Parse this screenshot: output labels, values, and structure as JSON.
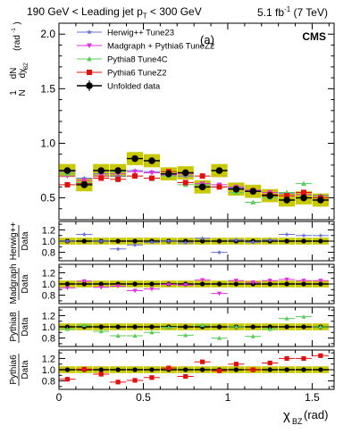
{
  "header": {
    "selection": "190 GeV < Leading jet p",
    "selection_sub": "T",
    "selection_tail": " < 300 GeV",
    "lumi": "5.1 fb",
    "lumi_sup": "-1",
    "lumi_tail": " (7 TeV)"
  },
  "labels": {
    "panel_tag": "(a)",
    "experiment": "CMS",
    "xlabel_main": "χ",
    "xlabel_sub": "BZ",
    "xlabel_unit": " (rad)"
  },
  "chart_data": {
    "type": "scatter",
    "xlim": [
      0,
      1.63
    ],
    "x": [
      0.0,
      0.1,
      0.2,
      0.3,
      0.4,
      0.5,
      0.6,
      0.7,
      0.8,
      0.9,
      1.0,
      1.1,
      1.2,
      1.3,
      1.4,
      1.5
    ],
    "x_ticks": [
      "0",
      "0.5",
      "1",
      "1.5"
    ],
    "main": {
      "ylabel": "1/N dN/dχ_BZ (rad^-1)",
      "ylim": [
        0.3,
        2.1
      ],
      "y_ticks": [
        "0.5",
        "1.0",
        "1.5",
        "2.0"
      ],
      "legend": [
        "Herwig++ Tune23",
        "Madgraph + Pythia6 TuneZ2",
        "Pythia8 Tune4C",
        "Pythia6 TuneZ2",
        "Unfolded data"
      ],
      "series": [
        {
          "name": "Herwig++ Tune23",
          "color": "#6a72d6",
          "marker": "star",
          "values": [
            0.74,
            0.68,
            0.72,
            0.7,
            0.75,
            0.74,
            0.72,
            0.7,
            0.62,
            0.6,
            0.59,
            0.56,
            0.52,
            0.54,
            0.55,
            0.52
          ]
        },
        {
          "name": "Madgraph + Pythia6 TuneZ2",
          "color": "#e030e0",
          "marker": "tri-down",
          "values": [
            0.7,
            0.66,
            0.7,
            0.72,
            0.74,
            0.73,
            0.71,
            0.72,
            0.63,
            0.62,
            0.6,
            0.57,
            0.55,
            0.52,
            0.53,
            0.5
          ]
        },
        {
          "name": "Pythia8 Tune4C",
          "color": "#5ccc5c",
          "marker": "tri-up",
          "values": [
            0.72,
            0.64,
            0.68,
            0.74,
            0.7,
            0.68,
            0.7,
            0.62,
            0.62,
            0.6,
            0.55,
            0.46,
            0.5,
            0.55,
            0.63,
            0.5
          ]
        },
        {
          "name": "Pythia6 TuneZ2",
          "color": "#e01010",
          "marker": "square",
          "values": [
            0.62,
            0.63,
            0.68,
            0.67,
            0.7,
            0.68,
            0.74,
            0.64,
            0.7,
            0.6,
            0.58,
            0.56,
            0.53,
            0.52,
            0.55,
            0.5
          ]
        },
        {
          "name": "Unfolded data",
          "color": "#000000",
          "marker": "circle",
          "values": [
            0.75,
            0.62,
            0.75,
            0.75,
            0.86,
            0.84,
            0.72,
            0.73,
            0.6,
            0.75,
            0.58,
            0.56,
            0.52,
            0.48,
            0.5,
            0.48
          ],
          "band": 0.06
        }
      ]
    },
    "ratios": [
      {
        "label_top": "Herwig++",
        "label_bottom": "Data",
        "color": "#6a72d6",
        "marker": "star",
        "ylim": [
          0.65,
          1.35
        ],
        "y_ticks": [
          "0.8",
          "1.0",
          "1.2"
        ],
        "values": [
          1.0,
          1.12,
          1.0,
          0.86,
          0.93,
          0.98,
          1.0,
          0.97,
          1.05,
          0.8,
          1.02,
          0.98,
          1.02,
          1.12,
          1.1,
          1.1
        ]
      },
      {
        "label_top": "Madgraph",
        "label_bottom": "Data",
        "color": "#e030e0",
        "marker": "tri-down",
        "ylim": [
          0.65,
          1.35
        ],
        "y_ticks": [
          "0.8",
          "1.0",
          "1.2"
        ],
        "values": [
          0.93,
          1.05,
          0.94,
          0.96,
          0.88,
          0.91,
          0.99,
          0.98,
          1.07,
          0.83,
          1.06,
          1.03,
          1.06,
          1.08,
          1.06,
          1.06
        ]
      },
      {
        "label_top": "Pythia8",
        "label_bottom": "Data",
        "color": "#5ccc5c",
        "marker": "tri-up",
        "ylim": [
          0.65,
          1.35
        ],
        "y_ticks": [
          "0.8",
          "1.0",
          "1.2"
        ],
        "values": [
          0.96,
          1.03,
          0.92,
          0.84,
          0.84,
          0.9,
          0.99,
          0.85,
          1.03,
          0.8,
          1.0,
          0.83,
          0.96,
          1.15,
          1.18,
          1.0
        ]
      },
      {
        "label_top": "Pythia6",
        "label_bottom": "Data",
        "color": "#e01010",
        "marker": "square",
        "ylim": [
          0.65,
          1.35
        ],
        "y_ticks": [
          "0.8",
          "1.0",
          "1.2"
        ],
        "values": [
          0.83,
          1.01,
          0.92,
          0.78,
          0.81,
          0.86,
          1.03,
          0.88,
          1.14,
          0.98,
          1.1,
          1.0,
          1.12,
          1.2,
          1.2,
          1.25
        ]
      }
    ],
    "data_band_color": "#c8c800",
    "data_band_halfwidth": 0.06
  }
}
